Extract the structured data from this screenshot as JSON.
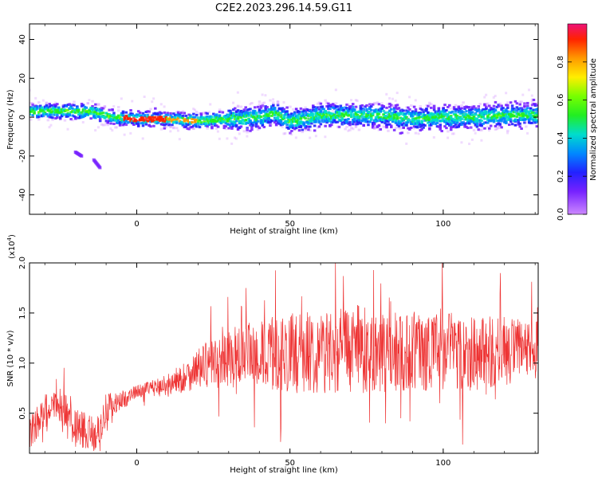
{
  "figure": {
    "title": "C2E2.2023.296.14.59.G11"
  },
  "chart_data": [
    {
      "type": "heatmap",
      "title": "",
      "xlabel": "Height of straight line (km)",
      "ylabel": "Frequency (Hz)",
      "xlim": [
        -35,
        131
      ],
      "ylim": [
        -50,
        48
      ],
      "xticks": [
        0,
        50,
        100
      ],
      "yticks": [
        -40,
        -20,
        0,
        20,
        40
      ],
      "colorbar": {
        "label": "Normalized spectral amplitude",
        "range": [
          0.0,
          1.0
        ],
        "ticks": [
          0.0,
          0.2,
          0.4,
          0.6,
          0.8
        ],
        "colormap": "rainbow"
      },
      "ridge": {
        "x": [
          -35,
          -25,
          -15,
          -8,
          0,
          10,
          20,
          30,
          40,
          45,
          50,
          55,
          60,
          70,
          80,
          90,
          100,
          110,
          120,
          131
        ],
        "y": [
          3,
          3,
          3,
          0,
          -1,
          -1,
          -2,
          -1,
          0,
          2,
          -2,
          -1,
          1,
          1,
          1,
          -1,
          0,
          0,
          1,
          1
        ]
      },
      "artifacts": [
        {
          "x": [
            -20,
            -18
          ],
          "y": [
            -18,
            -20
          ]
        },
        {
          "x": [
            -14,
            -12
          ],
          "y": [
            -22,
            -26
          ]
        }
      ],
      "grid": false
    },
    {
      "type": "line",
      "title": "",
      "xlabel": "Height of straight line (km)",
      "ylabel": "SNR (10 * v/v)",
      "y_multiplier": "(x10",
      "y_multiplier_exp": "4",
      "y_multiplier_close": ")",
      "xlim": [
        -35,
        131
      ],
      "ylim": [
        0.1,
        2.0
      ],
      "xticks": [
        0,
        50,
        100
      ],
      "yticks": [
        0.5,
        1.0,
        1.5,
        2.0
      ],
      "yticklabels": [
        "0.5",
        "1.0",
        "1.5",
        "2.0"
      ],
      "series": [
        {
          "name": "",
          "color": "#ee3333",
          "x": [
            -35,
            -30,
            -25,
            -20,
            -15,
            -12,
            -10,
            -5,
            0,
            5,
            10,
            15,
            20,
            25,
            30,
            40,
            50,
            60,
            70,
            80,
            90,
            100,
            110,
            120,
            131
          ],
          "y": [
            0.3,
            0.5,
            0.55,
            0.35,
            0.3,
            0.3,
            0.55,
            0.62,
            0.72,
            0.75,
            0.78,
            0.85,
            0.95,
            1.0,
            1.05,
            1.08,
            1.1,
            1.12,
            1.15,
            1.1,
            1.12,
            1.15,
            1.1,
            1.12,
            1.12
          ],
          "amp": [
            0.15,
            0.2,
            0.22,
            0.2,
            0.18,
            0.18,
            0.15,
            0.1,
            0.06,
            0.08,
            0.12,
            0.15,
            0.2,
            0.25,
            0.3,
            0.35,
            0.4,
            0.42,
            0.45,
            0.4,
            0.4,
            0.42,
            0.38,
            0.35,
            0.3
          ]
        }
      ],
      "grid": false
    }
  ]
}
